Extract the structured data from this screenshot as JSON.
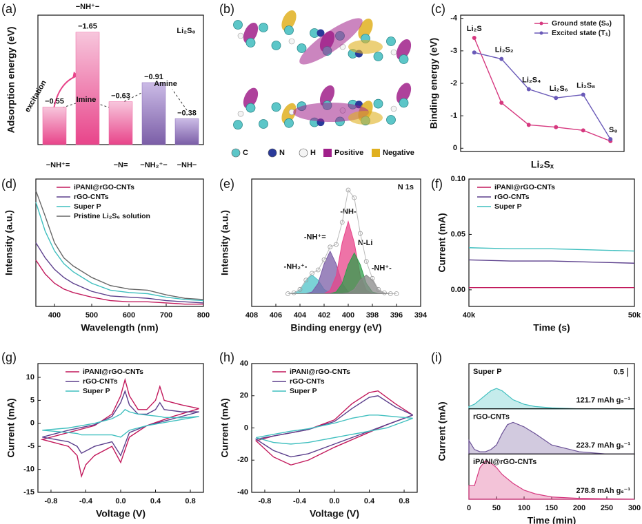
{
  "chart_data": [
    {
      "type": "bar",
      "label": "(a)",
      "ylabel": "Adsorption energy (eV)",
      "categories": [
        "−NH⁺=",
        "−NH⁺−",
        "−N=",
        "−NH₂⁺−",
        "−NH−"
      ],
      "values": [
        -0.55,
        -1.65,
        -0.63,
        -0.91,
        -0.38
      ],
      "value_labels": [
        "−0.55",
        "−1.65",
        "−0.63",
        "−0.91",
        "−0.38"
      ],
      "colors": [
        "#ec5c9c",
        "#ec5c9c",
        "#ec5c9c",
        "#8a6bb8",
        "#8a6bb8"
      ],
      "ylim": [
        0,
        -1.9
      ],
      "annotations": [
        "Li₂S₈",
        "excitation",
        "Imine",
        "Amine"
      ]
    },
    {
      "type": "image",
      "label": "(b)",
      "legend": [
        "C",
        "N",
        "H",
        "Positive",
        "Negative"
      ]
    },
    {
      "type": "line",
      "label": "(c)",
      "ylabel": "Binding energy (eV)",
      "xlabel": "Li₂Sₓ",
      "categories": [
        "Li₂S",
        "Li₂S₂",
        "Li₂S₄",
        "Li₂S₆",
        "Li₂S₈",
        "S₈"
      ],
      "series": [
        {
          "name": "Ground state (S₀)",
          "color": "#d6387f",
          "values": [
            -3.4,
            -1.4,
            -0.72,
            -0.65,
            -0.55,
            -0.22
          ]
        },
        {
          "name": "Excited state (T₁)",
          "color": "#6a5ab8",
          "values": [
            -2.95,
            -2.75,
            -1.82,
            -1.55,
            -1.65,
            -0.28
          ]
        }
      ],
      "ylim": [
        0.1,
        -4.1
      ],
      "yticks": [
        0,
        -1,
        -2,
        -3,
        -4
      ],
      "legend": "upper right",
      "markers": true
    },
    {
      "type": "line",
      "label": "(d)",
      "xlabel": "Wavelength (nm)",
      "ylabel": "Intensity (a.u.)",
      "x": [
        350,
        375,
        400,
        425,
        450,
        500,
        550,
        600,
        650,
        700,
        750,
        800
      ],
      "series": [
        {
          "name": "iPANI@rGO-CNTs",
          "color": "#c2185b",
          "values": [
            0.4,
            0.28,
            0.2,
            0.15,
            0.12,
            0.08,
            0.05,
            0.04,
            0.04,
            0.03,
            0.02,
            0.02
          ]
        },
        {
          "name": "rGO-CNTs",
          "color": "#5b3f8c",
          "values": [
            0.55,
            0.42,
            0.32,
            0.25,
            0.2,
            0.13,
            0.09,
            0.08,
            0.07,
            0.05,
            0.04,
            0.03
          ]
        },
        {
          "name": "Super P",
          "color": "#3fbfbf",
          "values": [
            0.9,
            0.65,
            0.48,
            0.37,
            0.3,
            0.2,
            0.14,
            0.12,
            0.11,
            0.08,
            0.06,
            0.05
          ]
        },
        {
          "name": "Pristine Li₂S₆ solution",
          "color": "#666666",
          "values": [
            1.0,
            0.78,
            0.55,
            0.42,
            0.35,
            0.25,
            0.18,
            0.15,
            0.14,
            0.1,
            0.07,
            0.06
          ]
        }
      ],
      "xlim": [
        350,
        800
      ],
      "xticks": [
        400,
        500,
        600,
        700,
        800
      ],
      "ylim": [
        0,
        1.1
      ],
      "legend": "upper left"
    },
    {
      "type": "area",
      "label": "(e)",
      "xlabel": "Binding energy (eV)",
      "ylabel": "Intensity (a.u.)",
      "annotation": "N 1s",
      "x": [
        405,
        404.5,
        404,
        403.5,
        403,
        402.5,
        402,
        401.5,
        401,
        400.5,
        400,
        399.5,
        399,
        398.5,
        398,
        397.5,
        397,
        396.5,
        396
      ],
      "raw": [
        0,
        0.01,
        0.05,
        0.16,
        0.24,
        0.28,
        0.4,
        0.55,
        0.58,
        0.84,
        1.22,
        1.13,
        0.71,
        0.38,
        0.18,
        0.05,
        0.01,
        0,
        0
      ],
      "series": [
        {
          "name": "-NH₂⁺-",
          "color": "#4fc3c8",
          "values": [
            0,
            0.01,
            0.05,
            0.16,
            0.22,
            0.16,
            0.05,
            0.01,
            0,
            0,
            0,
            0,
            0,
            0,
            0,
            0,
            0,
            0,
            0
          ]
        },
        {
          "name": "-NH⁺=",
          "color": "#7b5ea7",
          "values": [
            0,
            0,
            0,
            0,
            0.02,
            0.12,
            0.35,
            0.5,
            0.35,
            0.12,
            0.02,
            0,
            0,
            0,
            0,
            0,
            0,
            0,
            0
          ]
        },
        {
          "name": "-NH-",
          "color": "#e8448a",
          "values": [
            0,
            0,
            0,
            0,
            0,
            0,
            0,
            0.04,
            0.21,
            0.6,
            0.85,
            0.6,
            0.21,
            0.04,
            0,
            0,
            0,
            0,
            0
          ]
        },
        {
          "name": "N-Li",
          "color": "#2e9e4a",
          "values": [
            0,
            0,
            0,
            0,
            0,
            0,
            0,
            0,
            0.02,
            0.12,
            0.34,
            0.48,
            0.34,
            0.12,
            0.02,
            0,
            0,
            0,
            0
          ]
        },
        {
          "name": "-NH⁺-",
          "color": "#8a8a8a",
          "values": [
            0,
            0,
            0,
            0,
            0,
            0,
            0,
            0,
            0,
            0,
            0.01,
            0.05,
            0.16,
            0.22,
            0.16,
            0.05,
            0.01,
            0,
            0
          ]
        }
      ],
      "xlim": [
        408,
        394
      ],
      "xticks": [
        408,
        406,
        404,
        402,
        400,
        398,
        396,
        394
      ],
      "ylim": [
        -0.15,
        1.35
      ]
    },
    {
      "type": "line",
      "label": "(f)",
      "xlabel": "Time (s)",
      "ylabel": "Current (mA)",
      "x": [
        40000,
        42500,
        45000,
        47500,
        50000
      ],
      "series": [
        {
          "name": "iPANI@rGO-CNTs",
          "color": "#c2185b",
          "values": [
            0.002,
            0.002,
            0.002,
            0.002,
            0.002
          ]
        },
        {
          "name": "rGO-CNTs",
          "color": "#5b3f8c",
          "values": [
            0.027,
            0.026,
            0.026,
            0.025,
            0.024
          ]
        },
        {
          "name": "Super P",
          "color": "#3fbfbf",
          "values": [
            0.038,
            0.037,
            0.037,
            0.036,
            0.035
          ]
        }
      ],
      "xlim": [
        40000,
        50000
      ],
      "xticks": [
        {
          "value": 40000,
          "label": "40k"
        },
        {
          "value": 50000,
          "label": "50k"
        }
      ],
      "ylim": [
        -0.015,
        0.1
      ],
      "yticks": [
        {
          "value": 0,
          "label": "0.00"
        },
        {
          "value": 0.05,
          "label": "0.05"
        },
        {
          "value": 0.1,
          "label": "0.10"
        }
      ],
      "legend": "upper left"
    },
    {
      "type": "line",
      "label": "(g)",
      "xlabel": "Voltage (V)",
      "ylabel": "Current (mA)",
      "x": [
        0.9,
        0.6,
        0.3,
        0.1,
        0,
        -0.1,
        -0.3,
        -0.4,
        -0.45,
        -0.5,
        -0.6,
        -0.9,
        -0.6,
        -0.3,
        -0.1,
        0,
        0.05,
        0.1,
        0.2,
        0.3,
        0.4,
        0.45,
        0.5,
        0.7,
        0.9
      ],
      "series": [
        {
          "name": "iPANI@rGO-CNTs",
          "color": "#c2185b",
          "values": [
            3.2,
            1.5,
            -0.5,
            -3,
            -8.5,
            -5,
            -7,
            -9,
            -11.5,
            -7,
            -5,
            -3.5,
            -2,
            -0.5,
            2,
            6,
            9.5,
            6,
            3,
            3,
            5,
            8,
            5,
            4,
            3.2
          ]
        },
        {
          "name": "rGO-CNTs",
          "color": "#5b3f8c",
          "values": [
            2.5,
            1,
            -0.5,
            -2,
            -7,
            -4,
            -5,
            -6,
            -6.5,
            -5,
            -4,
            -3,
            -1.5,
            -0.3,
            1.5,
            4.5,
            7,
            4,
            2,
            2,
            3,
            4.5,
            3,
            2.5,
            2.5
          ]
        },
        {
          "name": "Super P",
          "color": "#3fbfbf",
          "values": [
            1.5,
            0.5,
            -0.5,
            -1.5,
            -3,
            -2.5,
            -2.5,
            -2.5,
            -2.5,
            -2.2,
            -2,
            -1.5,
            -1,
            0,
            1,
            2,
            3,
            2.5,
            2,
            1.8,
            1.6,
            1.5,
            1.3,
            1.2,
            1.5
          ]
        }
      ],
      "xlim": [
        -0.95,
        0.95
      ],
      "xticks": [
        -0.8,
        -0.4,
        {
          "value": 0,
          "label": "0.0"
        },
        0.4,
        0.8
      ],
      "ylim": [
        -15,
        13
      ],
      "yticks": [
        -15,
        -10,
        -5,
        0,
        5,
        10
      ],
      "legend": "upper left"
    },
    {
      "type": "line",
      "label": "(h)",
      "xlabel": "Voltage (V)",
      "ylabel": "Current (mA)",
      "x": [
        0.9,
        0.6,
        0.3,
        0,
        -0.3,
        -0.5,
        -0.7,
        -0.9,
        -0.7,
        -0.5,
        -0.3,
        0,
        0.2,
        0.4,
        0.5,
        0.7,
        0.9
      ],
      "series": [
        {
          "name": "iPANI@rGO-CNTs",
          "color": "#c2185b",
          "values": [
            8,
            2,
            -5,
            -12,
            -20,
            -23,
            -18,
            -8,
            -5,
            -3,
            -1,
            5,
            15,
            22,
            23,
            15,
            8
          ]
        },
        {
          "name": "rGO-CNTs",
          "color": "#5b3f8c",
          "values": [
            8,
            2,
            -4,
            -10,
            -16,
            -18,
            -14,
            -7,
            -5,
            -3,
            -1,
            4,
            12,
            19,
            20,
            13,
            8
          ]
        },
        {
          "name": "Super P",
          "color": "#3fbfbf",
          "values": [
            6,
            0,
            -3,
            -6,
            -9,
            -10,
            -9,
            -6,
            -4,
            -2,
            -0.5,
            3,
            6,
            8,
            8,
            7,
            6
          ]
        }
      ],
      "xlim": [
        -0.95,
        0.95
      ],
      "xticks": [
        -0.8,
        -0.4,
        {
          "value": 0,
          "label": "0.0"
        },
        0.4,
        0.8
      ],
      "ylim": [
        -40,
        40
      ],
      "yticks": [
        -40,
        -20,
        0,
        20,
        40
      ],
      "legend": "upper left"
    },
    {
      "type": "area-panels",
      "label": "(i)",
      "xlabel": "Time (min)",
      "ylabel": "Current (mA)",
      "scale": 0.5,
      "x": [
        0,
        10,
        20,
        30,
        40,
        50,
        60,
        70,
        80,
        100,
        120,
        150,
        200,
        250,
        300
      ],
      "series": [
        {
          "name": "Super P",
          "color": "#3fbfbf",
          "annotation": "121.7 mAh gₛ⁻¹",
          "values": [
            0.05,
            0.1,
            0.2,
            0.3,
            0.4,
            0.45,
            0.4,
            0.3,
            0.2,
            0.1,
            0.05,
            0.02,
            0,
            0,
            0
          ]
        },
        {
          "name": "rGO-CNTs",
          "color": "#6a5096",
          "annotation": "223.7 mAh gₛ⁻¹",
          "values": [
            0.3,
            0.1,
            0.05,
            0.05,
            0.1,
            0.2,
            0.45,
            0.65,
            0.7,
            0.6,
            0.45,
            0.2,
            0.05,
            0,
            0
          ]
        },
        {
          "name": "iPANI@rGO-CNTs",
          "color": "#d6387f",
          "annotation": "278.8 mAh gₛ⁻¹",
          "values": [
            0.3,
            0.3,
            0.7,
            0.85,
            0.8,
            0.7,
            0.55,
            0.45,
            0.35,
            0.2,
            0.12,
            0.05,
            0.02,
            0.01,
            0
          ]
        }
      ],
      "xlim": [
        0,
        300
      ],
      "xticks": [
        0,
        50,
        100,
        150,
        200,
        250,
        300
      ],
      "ylim": [
        0,
        1
      ]
    }
  ]
}
